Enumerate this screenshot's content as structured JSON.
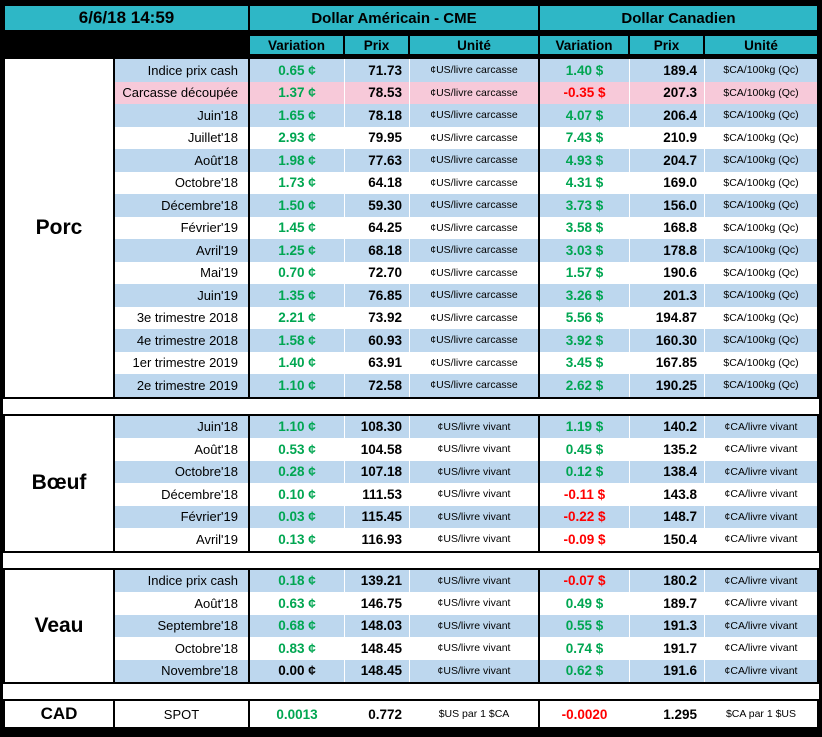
{
  "header": {
    "timestamp": "6/6/18 14:59",
    "usd_title": "Dollar Américain - CME",
    "cad_title": "Dollar Canadien",
    "col_variation": "Variation",
    "col_prix": "Prix",
    "col_unite": "Unité"
  },
  "colors": {
    "header_teal": "#2EB7C6",
    "row_blue": "#BDD7EE",
    "row_pink": "#F7C9D9",
    "row_white": "#FFFFFF",
    "positive_green": "#00A651",
    "negative_red": "#FF0000",
    "zero_black": "#000000"
  },
  "sections": [
    {
      "id": "porc",
      "label": "Porc",
      "rows": [
        {
          "label": "Indice prix cash",
          "us_var": "0.65 ¢",
          "us_prix": "71.73",
          "us_unit": "¢US/livre carcasse",
          "ca_var": "1.40 $",
          "ca_prix": "189.4",
          "ca_unit": "$CA/100kg (Qc)"
        },
        {
          "label": "Carcasse découpée",
          "bg": "pink",
          "us_var": "1.37 ¢",
          "us_prix": "78.53",
          "us_unit": "¢US/livre carcasse",
          "ca_var": "-0.35 $",
          "ca_prix": "207.3",
          "ca_unit": "$CA/100kg (Qc)"
        },
        {
          "label": "Juin'18",
          "us_var": "1.65 ¢",
          "us_prix": "78.18",
          "us_unit": "¢US/livre carcasse",
          "ca_var": "4.07 $",
          "ca_prix": "206.4",
          "ca_unit": "$CA/100kg (Qc)"
        },
        {
          "label": "Juillet'18",
          "us_var": "2.93 ¢",
          "us_prix": "79.95",
          "us_unit": "¢US/livre carcasse",
          "ca_var": "7.43 $",
          "ca_prix": "210.9",
          "ca_unit": "$CA/100kg (Qc)"
        },
        {
          "label": "Août'18",
          "us_var": "1.98 ¢",
          "us_prix": "77.63",
          "us_unit": "¢US/livre carcasse",
          "ca_var": "4.93 $",
          "ca_prix": "204.7",
          "ca_unit": "$CA/100kg (Qc)"
        },
        {
          "label": "Octobre'18",
          "us_var": "1.73 ¢",
          "us_prix": "64.18",
          "us_unit": "¢US/livre carcasse",
          "ca_var": "4.31 $",
          "ca_prix": "169.0",
          "ca_unit": "$CA/100kg (Qc)"
        },
        {
          "label": "Décembre'18",
          "us_var": "1.50 ¢",
          "us_prix": "59.30",
          "us_unit": "¢US/livre carcasse",
          "ca_var": "3.73 $",
          "ca_prix": "156.0",
          "ca_unit": "$CA/100kg (Qc)"
        },
        {
          "label": "Février'19",
          "us_var": "1.45 ¢",
          "us_prix": "64.25",
          "us_unit": "¢US/livre carcasse",
          "ca_var": "3.58 $",
          "ca_prix": "168.8",
          "ca_unit": "$CA/100kg (Qc)"
        },
        {
          "label": "Avril'19",
          "us_var": "1.25 ¢",
          "us_prix": "68.18",
          "us_unit": "¢US/livre carcasse",
          "ca_var": "3.03 $",
          "ca_prix": "178.8",
          "ca_unit": "$CA/100kg (Qc)"
        },
        {
          "label": "Mai'19",
          "us_var": "0.70 ¢",
          "us_prix": "72.70",
          "us_unit": "¢US/livre carcasse",
          "ca_var": "1.57 $",
          "ca_prix": "190.6",
          "ca_unit": "$CA/100kg (Qc)"
        },
        {
          "label": "Juin'19",
          "us_var": "1.35 ¢",
          "us_prix": "76.85",
          "us_unit": "¢US/livre carcasse",
          "ca_var": "3.26 $",
          "ca_prix": "201.3",
          "ca_unit": "$CA/100kg (Qc)"
        },
        {
          "label": "3e trimestre 2018",
          "us_var": "2.21 ¢",
          "us_prix": "73.92",
          "us_unit": "¢US/livre carcasse",
          "ca_var": "5.56 $",
          "ca_prix": "194.87",
          "ca_unit": "$CA/100kg (Qc)"
        },
        {
          "label": "4e trimestre 2018",
          "us_var": "1.58 ¢",
          "us_prix": "60.93",
          "us_unit": "¢US/livre carcasse",
          "ca_var": "3.92 $",
          "ca_prix": "160.30",
          "ca_unit": "$CA/100kg (Qc)"
        },
        {
          "label": "1er trimestre 2019",
          "us_var": "1.40 ¢",
          "us_prix": "63.91",
          "us_unit": "¢US/livre carcasse",
          "ca_var": "3.45 $",
          "ca_prix": "167.85",
          "ca_unit": "$CA/100kg (Qc)"
        },
        {
          "label": "2e trimestre 2019",
          "us_var": "1.10 ¢",
          "us_prix": "72.58",
          "us_unit": "¢US/livre carcasse",
          "ca_var": "2.62 $",
          "ca_prix": "190.25",
          "ca_unit": "$CA/100kg (Qc)"
        }
      ]
    },
    {
      "id": "boeuf",
      "label": "Bœuf",
      "rows": [
        {
          "label": "Juin'18",
          "us_var": "1.10 ¢",
          "us_prix": "108.30",
          "us_unit": "¢US/livre vivant",
          "ca_var": "1.19 $",
          "ca_prix": "140.2",
          "ca_unit": "¢CA/livre vivant"
        },
        {
          "label": "Août'18",
          "us_var": "0.53 ¢",
          "us_prix": "104.58",
          "us_unit": "¢US/livre vivant",
          "ca_var": "0.45 $",
          "ca_prix": "135.2",
          "ca_unit": "¢CA/livre vivant"
        },
        {
          "label": "Octobre'18",
          "us_var": "0.28 ¢",
          "us_prix": "107.18",
          "us_unit": "¢US/livre vivant",
          "ca_var": "0.12 $",
          "ca_prix": "138.4",
          "ca_unit": "¢CA/livre vivant"
        },
        {
          "label": "Décembre'18",
          "us_var": "0.10 ¢",
          "us_prix": "111.53",
          "us_unit": "¢US/livre vivant",
          "ca_var": "-0.11 $",
          "ca_prix": "143.8",
          "ca_unit": "¢CA/livre vivant"
        },
        {
          "label": "Février'19",
          "us_var": "0.03 ¢",
          "us_prix": "115.45",
          "us_unit": "¢US/livre vivant",
          "ca_var": "-0.22 $",
          "ca_prix": "148.7",
          "ca_unit": "¢CA/livre vivant"
        },
        {
          "label": "Avril'19",
          "us_var": "0.13 ¢",
          "us_prix": "116.93",
          "us_unit": "¢US/livre vivant",
          "ca_var": "-0.09 $",
          "ca_prix": "150.4",
          "ca_unit": "¢CA/livre vivant"
        }
      ]
    },
    {
      "id": "veau",
      "label": "Veau",
      "rows": [
        {
          "label": "Indice prix cash",
          "us_var": "0.18 ¢",
          "us_prix": "139.21",
          "us_unit": "¢US/livre vivant",
          "ca_var": "-0.07 $",
          "ca_prix": "180.2",
          "ca_unit": "¢CA/livre vivant"
        },
        {
          "label": "Août'18",
          "us_var": "0.63 ¢",
          "us_prix": "146.75",
          "us_unit": "¢US/livre vivant",
          "ca_var": "0.49 $",
          "ca_prix": "189.7",
          "ca_unit": "¢CA/livre vivant"
        },
        {
          "label": "Septembre'18",
          "us_var": "0.68 ¢",
          "us_prix": "148.03",
          "us_unit": "¢US/livre vivant",
          "ca_var": "0.55 $",
          "ca_prix": "191.3",
          "ca_unit": "¢CA/livre vivant"
        },
        {
          "label": "Octobre'18",
          "us_var": "0.83 ¢",
          "us_prix": "148.45",
          "us_unit": "¢US/livre vivant",
          "ca_var": "0.74 $",
          "ca_prix": "191.7",
          "ca_unit": "¢CA/livre vivant"
        },
        {
          "label": "Novembre'18",
          "us_var": "0.00 ¢",
          "us_prix": "148.45",
          "us_unit": "¢US/livre vivant",
          "ca_var": "0.62 $",
          "ca_prix": "191.6",
          "ca_unit": "¢CA/livre vivant"
        }
      ]
    },
    {
      "id": "cad",
      "label": "CAD",
      "rows": [
        {
          "label": "SPOT",
          "bg": "white",
          "us_var": "0.0013",
          "us_prix": "0.772",
          "us_unit": "$US par 1 $CA",
          "ca_var": "-0.0020",
          "ca_prix": "1.295",
          "ca_unit": "$CA par 1 $US"
        }
      ]
    }
  ]
}
